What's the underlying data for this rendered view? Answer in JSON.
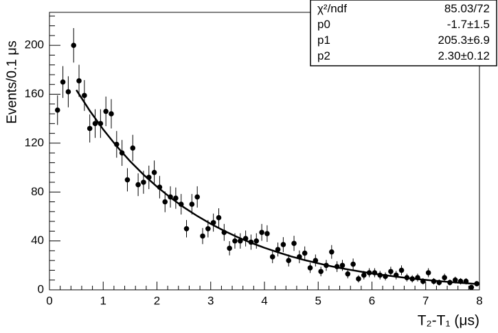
{
  "chart_data": {
    "type": "scatter",
    "x_label": "T₂-T₁ (μs)",
    "y_label": "Events/0.1 μs",
    "xlim": [
      0,
      8
    ],
    "ylim": [
      0,
      227
    ],
    "xticks": [
      0,
      1,
      2,
      3,
      4,
      5,
      6,
      7,
      8
    ],
    "yticks": [
      0,
      40,
      80,
      120,
      160,
      200
    ],
    "color": "#000000",
    "series": [
      {
        "x": [
          0.15,
          0.25,
          0.35,
          0.45,
          0.55,
          0.65,
          0.75,
          0.85,
          0.95,
          1.05,
          1.15,
          1.25,
          1.35,
          1.45,
          1.55,
          1.65,
          1.75,
          1.85,
          1.95,
          2.05,
          2.15,
          2.25,
          2.35,
          2.45,
          2.55,
          2.65,
          2.75,
          2.85,
          2.95,
          3.05,
          3.15,
          3.25,
          3.35,
          3.45,
          3.55,
          3.65,
          3.75,
          3.85,
          3.95,
          4.05,
          4.15,
          4.25,
          4.35,
          4.45,
          4.55,
          4.65,
          4.75,
          4.85,
          4.95,
          5.05,
          5.15,
          5.25,
          5.35,
          5.45,
          5.55,
          5.65,
          5.75,
          5.85,
          5.95,
          6.05,
          6.15,
          6.25,
          6.35,
          6.45,
          6.55,
          6.65,
          6.75,
          6.85,
          6.95,
          7.05,
          7.15,
          7.25,
          7.35,
          7.45,
          7.55,
          7.65,
          7.75,
          7.85,
          7.95
        ],
        "values": [
          147,
          170,
          162,
          200,
          171,
          159,
          132,
          136,
          136,
          146,
          144,
          119,
          112,
          90,
          116,
          86,
          88,
          92,
          96,
          84,
          72,
          76,
          75,
          70,
          50,
          70,
          76,
          44,
          50,
          55,
          59,
          47,
          34,
          40,
          40,
          42,
          39,
          40,
          47,
          46,
          27,
          33,
          37,
          24,
          38,
          27,
          30,
          18,
          24,
          15,
          20,
          31,
          19,
          20,
          13,
          21,
          9,
          12,
          14,
          14,
          12,
          11,
          15,
          12,
          16,
          10,
          9,
          10,
          7,
          14,
          7,
          6,
          10,
          6,
          8,
          7,
          7,
          2,
          5
        ],
        "errors": [
          12.1,
          13.0,
          12.7,
          14.1,
          13.1,
          12.6,
          11.5,
          11.7,
          11.7,
          12.1,
          12.0,
          10.9,
          10.6,
          9.5,
          10.8,
          9.3,
          9.4,
          9.6,
          9.8,
          9.2,
          8.5,
          8.7,
          8.7,
          8.4,
          7.1,
          8.4,
          8.7,
          6.6,
          7.1,
          7.4,
          7.7,
          6.9,
          5.8,
          6.3,
          6.3,
          6.5,
          6.2,
          6.3,
          6.9,
          6.8,
          5.2,
          5.7,
          6.1,
          4.9,
          6.2,
          5.2,
          5.5,
          4.2,
          4.9,
          3.9,
          4.5,
          5.6,
          4.4,
          4.5,
          3.6,
          4.6,
          3.0,
          3.5,
          3.7,
          3.7,
          3.5,
          3.3,
          3.9,
          3.5,
          4.0,
          3.2,
          3.0,
          3.2,
          2.6,
          3.7,
          2.6,
          2.4,
          3.2,
          2.4,
          2.8,
          2.6,
          2.6,
          1.4,
          2.2
        ]
      }
    ],
    "fit": {
      "x": [
        0.5,
        0.75,
        1.0,
        1.25,
        1.5,
        1.75,
        2.0,
        2.25,
        2.5,
        2.75,
        3.0,
        3.25,
        3.5,
        3.75,
        4.0,
        4.25,
        4.5,
        4.75,
        5.0,
        5.25,
        5.5,
        5.75,
        6.0,
        6.25,
        6.5,
        6.75,
        7.0,
        7.25,
        7.5,
        7.75,
        8.0
      ],
      "values": [
        163.5,
        146.5,
        131.2,
        117.5,
        105.2,
        94.2,
        84.4,
        75.5,
        67.5,
        60.4,
        54.0,
        48.3,
        43.1,
        38.5,
        34.4,
        30.7,
        27.3,
        24.3,
        21.7,
        19.2,
        17.1,
        15.2,
        13.4,
        11.9,
        10.5,
        9.2,
        8.1,
        7.1,
        6.2,
        5.4,
        4.6
      ]
    },
    "stats": [
      {
        "label": "χ²/ndf",
        "value": "85.03/72"
      },
      {
        "label": "p0",
        "value": "-1.7±1.5"
      },
      {
        "label": "p1",
        "value": "205.3±6.9"
      },
      {
        "label": "p2",
        "value": "2.30±0.12"
      }
    ]
  }
}
